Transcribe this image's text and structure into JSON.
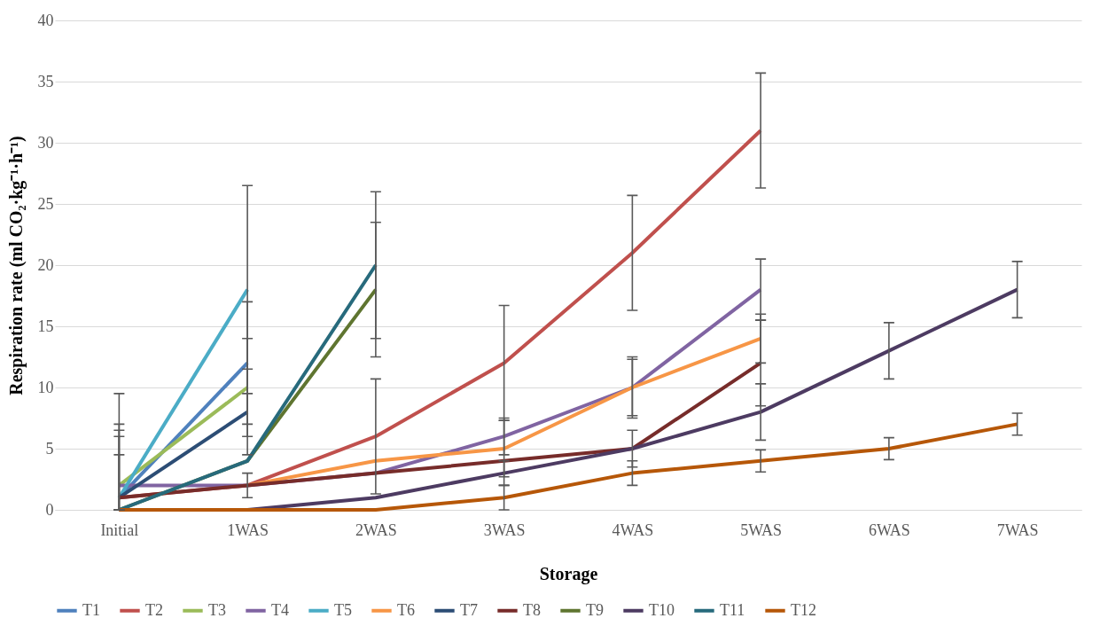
{
  "chart_data": {
    "type": "line",
    "xlabel": "Storage",
    "ylabel": "Respiration rate (ml CO₂·kg⁻¹·h⁻¹)",
    "categories": [
      "Initial",
      "1WAS",
      "2WAS",
      "3WAS",
      "4WAS",
      "5WAS",
      "6WAS",
      "7WAS"
    ],
    "ylim": [
      0,
      40
    ],
    "yticks": [
      0,
      5,
      10,
      15,
      20,
      25,
      30,
      35,
      40
    ],
    "grid": "y",
    "legend": "bottom",
    "line_style": "solid",
    "series": [
      {
        "name": "T1",
        "color": "#4f81bd",
        "values": [
          1,
          12,
          null,
          null,
          null,
          null,
          null,
          null
        ],
        "errors": [
          [
            0,
            7
          ],
          5,
          null,
          null,
          null,
          null,
          null,
          null
        ]
      },
      {
        "name": "T2",
        "color": "#c0504d",
        "values": [
          1,
          2,
          6,
          12,
          21,
          31,
          null,
          null
        ],
        "errors": [
          null,
          1,
          4.7,
          4.7,
          4.7,
          4.7,
          null,
          null
        ]
      },
      {
        "name": "T3",
        "color": "#9bbb59",
        "values": [
          2,
          10,
          null,
          null,
          null,
          null,
          null,
          null
        ],
        "errors": [
          [
            0,
            6.5
          ],
          4,
          null,
          null,
          null,
          null,
          null,
          null
        ]
      },
      {
        "name": "T4",
        "color": "#8064a2",
        "values": [
          2,
          2,
          3,
          6,
          10,
          18,
          null,
          null
        ],
        "errors": [
          [
            0,
            6
          ],
          null,
          null,
          1.5,
          2.5,
          2.5,
          null,
          null
        ]
      },
      {
        "name": "T5",
        "color": "#4bacc6",
        "values": [
          1,
          18,
          null,
          null,
          null,
          null,
          null,
          null
        ],
        "errors": [
          [
            0,
            9.5
          ],
          8.5,
          null,
          null,
          null,
          null,
          null,
          null
        ]
      },
      {
        "name": "T6",
        "color": "#f79646",
        "values": [
          null,
          2,
          4,
          5,
          10,
          14,
          null,
          null
        ],
        "errors": [
          null,
          null,
          null,
          2.3,
          2.3,
          2,
          null,
          null
        ]
      },
      {
        "name": "T7",
        "color": "#2c4d75",
        "values": [
          1,
          8,
          null,
          null,
          null,
          null,
          null,
          null
        ],
        "errors": [
          [
            0,
            4.5
          ],
          3.5,
          null,
          null,
          null,
          null,
          null,
          null
        ]
      },
      {
        "name": "T8",
        "color": "#772c2a",
        "values": [
          1,
          2,
          3,
          4,
          5,
          12,
          null,
          null
        ],
        "errors": [
          null,
          null,
          null,
          null,
          null,
          3.5,
          null,
          null
        ]
      },
      {
        "name": "T9",
        "color": "#5f7530",
        "values": [
          0,
          4,
          18,
          null,
          null,
          null,
          null,
          null
        ],
        "errors": [
          null,
          null,
          5.5,
          null,
          null,
          null,
          null,
          null
        ]
      },
      {
        "name": "T10",
        "color": "#4d3b62",
        "values": [
          0,
          0,
          1,
          3,
          5,
          8,
          13,
          18
        ],
        "errors": [
          null,
          null,
          null,
          1,
          1.5,
          2.3,
          2.3,
          2.3
        ]
      },
      {
        "name": "T11",
        "color": "#276a7c",
        "values": [
          0,
          4,
          20,
          null,
          null,
          null,
          null,
          null
        ],
        "errors": [
          null,
          null,
          6,
          null,
          null,
          null,
          null,
          null
        ]
      },
      {
        "name": "T12",
        "color": "#b65708",
        "values": [
          0,
          0,
          0,
          1,
          3,
          4,
          5,
          7
        ],
        "errors": [
          null,
          null,
          null,
          1,
          1,
          0.9,
          0.9,
          0.9
        ]
      }
    ]
  }
}
